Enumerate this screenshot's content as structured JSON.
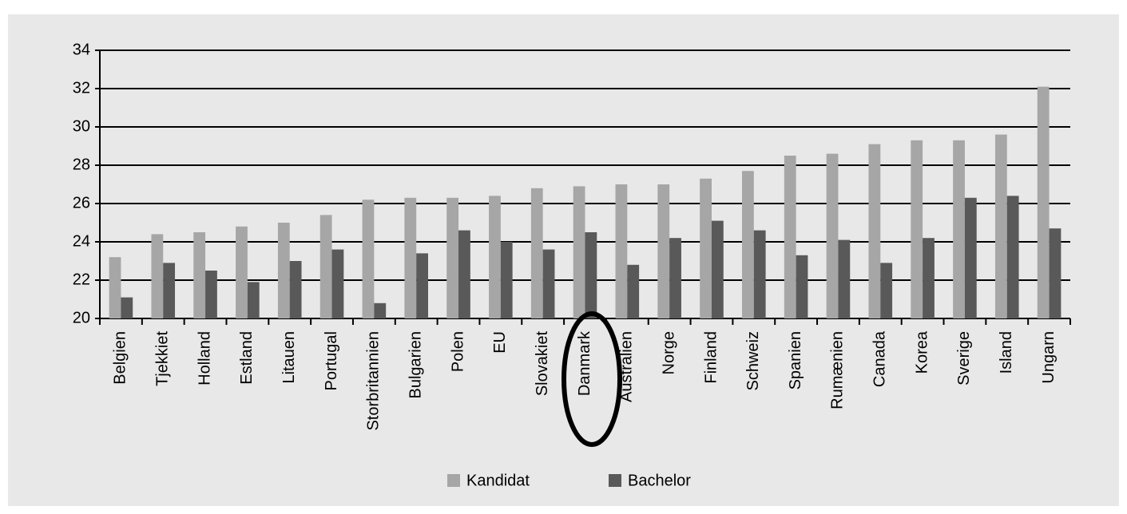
{
  "chart_data": {
    "type": "bar",
    "categories": [
      "Belgien",
      "Tjekkiet",
      "Holland",
      "Estland",
      "Litauen",
      "Portugal",
      "Storbritannien",
      "Bulgarien",
      "Polen",
      "EU",
      "Slovakiet",
      "Danmark",
      "Australien",
      "Norge",
      "Finland",
      "Schweiz",
      "Spanien",
      "Rumænien",
      "Canada",
      "Korea",
      "Sverige",
      "Island",
      "Ungarn"
    ],
    "series": [
      {
        "name": "Kandidat",
        "color": "#a6a6a6",
        "values": [
          23.2,
          24.4,
          24.5,
          24.8,
          25.0,
          25.4,
          26.2,
          26.3,
          26.3,
          26.4,
          26.8,
          26.9,
          27.0,
          27.0,
          27.3,
          27.7,
          28.5,
          28.6,
          29.1,
          29.3,
          29.3,
          29.6,
          32.1
        ]
      },
      {
        "name": "Bachelor",
        "color": "#595959",
        "values": [
          21.1,
          22.9,
          22.5,
          21.9,
          23.0,
          23.6,
          20.8,
          23.4,
          24.6,
          24.0,
          23.6,
          24.5,
          22.8,
          24.2,
          25.1,
          24.6,
          23.3,
          24.1,
          22.9,
          24.2,
          26.3,
          26.4,
          24.7
        ]
      }
    ],
    "ylim": [
      20,
      34
    ],
    "yticks": [
      20,
      22,
      24,
      26,
      28,
      30,
      32,
      34
    ],
    "grid": true,
    "legend": "bottom"
  }
}
